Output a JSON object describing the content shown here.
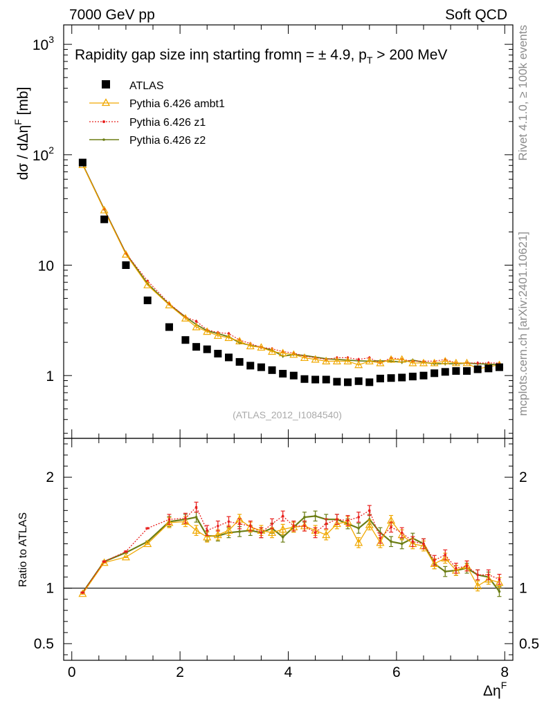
{
  "header": {
    "left": "7000 GeV pp",
    "right": "Soft QCD"
  },
  "side_text": {
    "rivet": "Rivet 4.1.0, ≥ 100k events",
    "mcplots": "mcplots.cern.ch [arXiv:2401.10621]"
  },
  "chart_data": [
    {
      "type": "scatter",
      "title": "Rapidity gap size inη starting fromη = ± 4.9, p_T > 200 MeV",
      "title_main": "Rapidity gap size inη starting fromη = ± 4.9, p",
      "title_sub": "T",
      "title_tail": " > 200 MeV",
      "watermark": "(ATLAS_2012_I1084540)",
      "xlabel": "Δη",
      "xlabel_sup": "F",
      "ylabel": "dσ / dΔη",
      "ylabel_sup": "F",
      "ylabel_unit": " [mb]",
      "yscale": "log",
      "ylim": [
        0.27,
        1500
      ],
      "xlim": [
        -0.15,
        8.15
      ],
      "x_ticks": [
        0,
        2,
        4,
        6,
        8
      ],
      "y_tick_labels": [
        {
          "value": 1000,
          "base": "10",
          "exp": "3"
        },
        {
          "value": 100,
          "base": "10",
          "exp": "2"
        },
        {
          "value": 10,
          "base": "10",
          "exp": ""
        },
        {
          "value": 1,
          "base": "1",
          "exp": ""
        }
      ],
      "legend_position": "top-left",
      "x": [
        0.2,
        0.6,
        1.0,
        1.4,
        1.8,
        2.1,
        2.3,
        2.5,
        2.7,
        2.9,
        3.1,
        3.3,
        3.5,
        3.7,
        3.9,
        4.1,
        4.3,
        4.5,
        4.7,
        4.9,
        5.1,
        5.3,
        5.5,
        5.7,
        5.9,
        6.1,
        6.3,
        6.5,
        6.7,
        6.9,
        7.1,
        7.3,
        7.5,
        7.7,
        7.9
      ],
      "series": [
        {
          "name": "ATLAS",
          "color": "#000000",
          "marker": "square",
          "values": [
            85,
            26,
            10,
            4.8,
            2.75,
            2.1,
            1.82,
            1.73,
            1.58,
            1.46,
            1.33,
            1.23,
            1.19,
            1.12,
            1.04,
            1.0,
            0.93,
            0.92,
            0.92,
            0.88,
            0.87,
            0.89,
            0.87,
            0.94,
            0.95,
            0.96,
            0.98,
            1.0,
            1.05,
            1.08,
            1.1,
            1.1,
            1.14,
            1.16,
            1.19
          ]
        },
        {
          "name": "Pythia 6.426 ambt1",
          "color": "#f0a800",
          "marker": "open-triangle",
          "values": [
            81,
            31.5,
            12.5,
            6.6,
            4.35,
            3.3,
            2.75,
            2.5,
            2.3,
            2.2,
            2.05,
            1.85,
            1.8,
            1.65,
            1.6,
            1.55,
            1.45,
            1.4,
            1.35,
            1.35,
            1.35,
            1.25,
            1.35,
            1.3,
            1.4,
            1.4,
            1.3,
            1.3,
            1.3,
            1.35,
            1.3,
            1.3,
            1.15,
            1.2,
            1.25
          ]
        },
        {
          "name": "Pythia 6.426 z1",
          "color": "#e8201e",
          "marker": "dot",
          "values": [
            82,
            32,
            12.8,
            7.2,
            4.5,
            3.4,
            3.1,
            2.6,
            2.45,
            2.4,
            2.1,
            1.95,
            1.8,
            1.75,
            1.65,
            1.6,
            1.5,
            1.45,
            1.4,
            1.45,
            1.45,
            1.4,
            1.45,
            1.3,
            1.45,
            1.4,
            1.35,
            1.35,
            1.35,
            1.4,
            1.3,
            1.3,
            1.3,
            1.3,
            1.3
          ]
        },
        {
          "name": "Pythia 6.426 z2",
          "color": "#6b7d14",
          "marker": "small-dot",
          "values": [
            82,
            32,
            12.8,
            6.8,
            4.4,
            3.4,
            2.9,
            2.55,
            2.4,
            2.25,
            1.98,
            1.88,
            1.8,
            1.7,
            1.5,
            1.55,
            1.52,
            1.47,
            1.42,
            1.4,
            1.38,
            1.36,
            1.35,
            1.36,
            1.35,
            1.32,
            1.38,
            1.32,
            1.28,
            1.28,
            1.28,
            1.3,
            1.28,
            1.27,
            1.25
          ]
        }
      ]
    },
    {
      "type": "line",
      "ylabel": "Ratio to ATLAS",
      "ylim": [
        0.35,
        2.35
      ],
      "y_ticks": [
        0.5,
        1,
        2
      ],
      "y_tick_labels": [
        "0.5",
        "1",
        "2"
      ],
      "reference_line": 1,
      "x": [
        0.2,
        0.6,
        1.0,
        1.4,
        1.8,
        2.1,
        2.3,
        2.5,
        2.7,
        2.9,
        3.1,
        3.3,
        3.5,
        3.7,
        3.9,
        4.1,
        4.3,
        4.5,
        4.7,
        4.9,
        5.1,
        5.3,
        5.5,
        5.7,
        5.9,
        6.1,
        6.3,
        6.5,
        6.7,
        6.9,
        7.1,
        7.3,
        7.5,
        7.7,
        7.9
      ],
      "series": [
        {
          "name": "Pythia 6.426 ambt1",
          "color": "#f0a800",
          "values": [
            0.95,
            1.23,
            1.28,
            1.4,
            1.59,
            1.6,
            1.52,
            1.46,
            1.48,
            1.52,
            1.62,
            1.55,
            1.52,
            1.5,
            1.53,
            1.55,
            1.56,
            1.52,
            1.48,
            1.58,
            1.6,
            1.41,
            1.57,
            1.41,
            1.61,
            1.48,
            1.4,
            1.38,
            1.22,
            1.27,
            1.16,
            1.2,
            1.02,
            1.08,
            1.05
          ]
        },
        {
          "name": "Pythia 6.426 z1",
          "color": "#e8201e",
          "values": [
            0.96,
            1.24,
            1.33,
            1.54,
            1.62,
            1.63,
            1.73,
            1.52,
            1.56,
            1.6,
            1.58,
            1.56,
            1.5,
            1.58,
            1.65,
            1.56,
            1.56,
            1.5,
            1.58,
            1.62,
            1.61,
            1.64,
            1.7,
            1.45,
            1.55,
            1.5,
            1.42,
            1.4,
            1.25,
            1.3,
            1.18,
            1.2,
            1.12,
            1.12,
            1.08
          ]
        },
        {
          "name": "Pythia 6.426 z2",
          "color": "#6b7d14",
          "values": [
            0.96,
            1.24,
            1.32,
            1.42,
            1.6,
            1.62,
            1.64,
            1.47,
            1.47,
            1.5,
            1.51,
            1.52,
            1.5,
            1.54,
            1.46,
            1.55,
            1.64,
            1.65,
            1.62,
            1.62,
            1.58,
            1.54,
            1.62,
            1.5,
            1.42,
            1.4,
            1.45,
            1.4,
            1.22,
            1.15,
            1.16,
            1.18,
            1.12,
            1.1,
            0.97
          ]
        }
      ]
    }
  ]
}
